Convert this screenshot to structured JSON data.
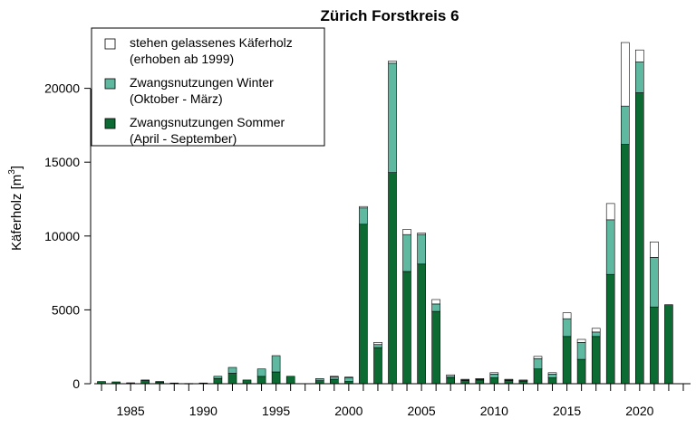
{
  "chart_data": {
    "type": "bar",
    "stacked": true,
    "title": "Zürich Forstkreis 6",
    "ylabel_main": "Käferholz [m",
    "ylabel_sup": "3",
    "ylabel_tail": "]",
    "ylim": [
      0,
      23500
    ],
    "yticks": [
      0,
      5000,
      10000,
      15000,
      20000
    ],
    "xlim": [
      1982.5,
      2023.5
    ],
    "xticks": [
      1985,
      1990,
      1995,
      2000,
      2005,
      2010,
      2015,
      2020
    ],
    "years": [
      1983,
      1984,
      1985,
      1986,
      1987,
      1988,
      1989,
      1990,
      1991,
      1992,
      1993,
      1994,
      1995,
      1996,
      1997,
      1998,
      1999,
      2000,
      2001,
      2002,
      2003,
      2004,
      2005,
      2006,
      2007,
      2008,
      2009,
      2010,
      2011,
      2012,
      2013,
      2014,
      2015,
      2016,
      2017,
      2018,
      2019,
      2020,
      2021,
      2022
    ],
    "series": [
      {
        "name": "Zwangsnutzungen Sommer",
        "name_line2": "(April - September)",
        "color": "#0b6b32",
        "values": [
          150,
          120,
          60,
          200,
          120,
          50,
          20,
          50,
          350,
          700,
          250,
          500,
          800,
          500,
          0,
          200,
          300,
          150,
          10800,
          2450,
          14300,
          7600,
          8100,
          4900,
          400,
          200,
          250,
          400,
          200,
          150,
          1000,
          400,
          3200,
          1650,
          3200,
          7400,
          16200,
          19700,
          5200,
          5350
        ]
      },
      {
        "name": "Zwangsnutzungen Winter",
        "name_line2": "(Oktober - März)",
        "color": "#5fb8a0",
        "values": [
          0,
          0,
          0,
          50,
          30,
          0,
          0,
          0,
          150,
          400,
          0,
          500,
          1100,
          0,
          0,
          150,
          150,
          250,
          1100,
          200,
          7400,
          2500,
          2000,
          500,
          100,
          50,
          50,
          250,
          50,
          50,
          700,
          250,
          1200,
          1150,
          300,
          3700,
          2600,
          2100,
          3350,
          0
        ]
      },
      {
        "name": "stehen gelassenes Käferholz",
        "name_line2": "(erhoben ab 1999)",
        "color": "#ffffff",
        "values": [
          0,
          0,
          0,
          0,
          0,
          0,
          0,
          0,
          0,
          0,
          0,
          0,
          0,
          0,
          0,
          0,
          50,
          50,
          100,
          150,
          150,
          350,
          100,
          300,
          100,
          50,
          50,
          100,
          50,
          50,
          150,
          100,
          400,
          200,
          250,
          1100,
          4300,
          800,
          1050,
          0
        ]
      }
    ],
    "legend_position": "top-left",
    "grid": false
  }
}
